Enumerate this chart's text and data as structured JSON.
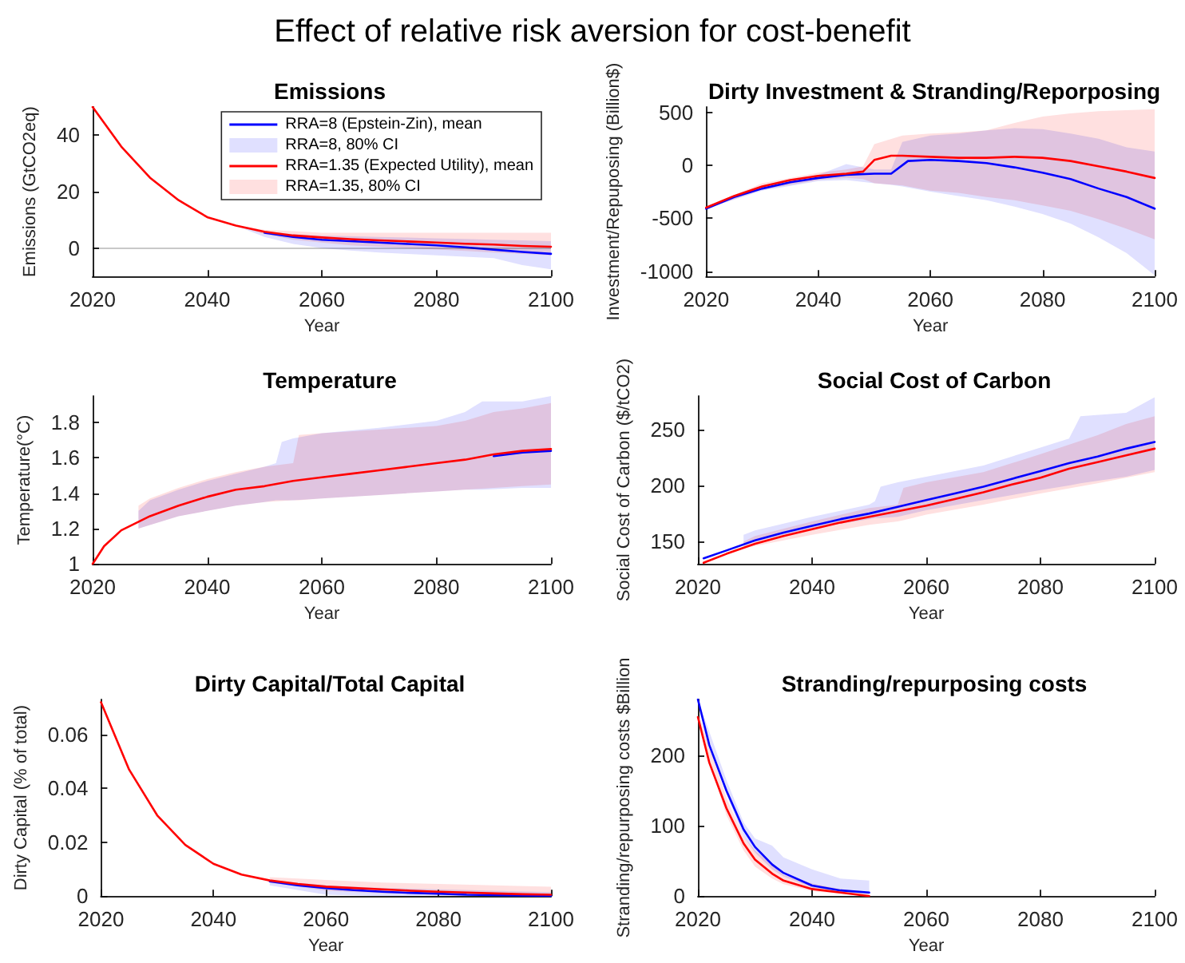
{
  "chart_data": [
    {
      "type": "other",
      "title": "Effect of relative risk aversion for cost-benefit"
    },
    {
      "type": "line",
      "title": "Emissions",
      "xlabel": "Year",
      "ylabel": "Emissions (GtCO2eq)",
      "xlim": [
        2020,
        2100
      ],
      "xticks": [
        2020,
        2040,
        2060,
        2080,
        2100
      ],
      "ylim": [
        -10,
        50
      ],
      "yticks": [
        0,
        20,
        40
      ],
      "legend": "top right",
      "ref_lines": [
        {
          "axis": "y",
          "value": 0,
          "color": "#c8c8c8"
        }
      ],
      "series": [
        {
          "type": "line",
          "name": "RRA=8 (Epstein-Zin), mean",
          "color": "#0000ff",
          "x": [
            2050,
            2055,
            2060,
            2065,
            2070,
            2075,
            2080,
            2085,
            2090,
            2095,
            2100
          ],
          "values": [
            5.5,
            4,
            3,
            2.5,
            2,
            1.5,
            1,
            0.3,
            -0.5,
            -1.3,
            -2
          ]
        },
        {
          "type": "area",
          "name": "RRA=8, 80% CI",
          "color": "#e0e0ff",
          "x": [
            2045,
            2050,
            2055,
            2060,
            2065,
            2070,
            2075,
            2080,
            2085,
            2090,
            2095,
            2100
          ],
          "values": [
            null,
            null,
            null,
            null,
            null,
            null,
            null,
            null,
            null,
            null,
            null,
            null
          ],
          "lower": [
            8,
            4,
            1.5,
            0,
            -0.8,
            -1.5,
            -2,
            -2.5,
            -3,
            -3.5,
            -6,
            -7.5
          ],
          "upper": [
            8,
            6,
            5,
            4.5,
            4.3,
            4,
            3.8,
            3.5,
            3.3,
            3,
            2.8,
            2.5
          ]
        },
        {
          "type": "line",
          "name": "RRA=1.35 (Expected Utility), mean",
          "color": "#ff0000",
          "x": [
            2020,
            2025,
            2030,
            2035,
            2040,
            2045,
            2050,
            2055,
            2060,
            2065,
            2070,
            2075,
            2080,
            2085,
            2090,
            2095,
            2100
          ],
          "values": [
            50,
            36,
            25,
            17,
            11,
            8,
            5.8,
            4.5,
            3.8,
            3.2,
            2.8,
            2.4,
            2,
            1.6,
            1.3,
            0.8,
            0.5
          ]
        },
        {
          "type": "area",
          "name": "RRA=1.35, 80% CI",
          "color": "#ffe0e0",
          "x": [
            2045,
            2050,
            2055,
            2060,
            2065,
            2070,
            2075,
            2080,
            2085,
            2090,
            2095,
            2100
          ],
          "values": [
            null,
            null,
            null,
            null,
            null,
            null,
            null,
            null,
            null,
            null,
            null,
            null
          ],
          "lower": [
            8,
            5,
            3,
            2,
            1,
            0.5,
            0,
            -0.5,
            -1,
            -1.5,
            -2,
            -2.5
          ],
          "upper": [
            8,
            6.5,
            6,
            5.5,
            5.5,
            5.5,
            5.5,
            5.5,
            5.5,
            5.5,
            5.5,
            5.5
          ]
        }
      ]
    },
    {
      "type": "line",
      "title": "Dirty Investment & Stranding/Reporposing",
      "xlabel": "Year",
      "ylabel": "Investment/Repuposing (Billion$)",
      "xlim": [
        2020,
        2100
      ],
      "xticks": [
        2020,
        2040,
        2060,
        2080,
        2100
      ],
      "ylim": [
        -1050,
        550
      ],
      "yticks": [
        -1000,
        -500,
        0,
        500
      ],
      "series": [
        {
          "type": "line",
          "color": "#0000ff",
          "x": [
            2020,
            2025,
            2030,
            2035,
            2040,
            2045,
            2050,
            2053,
            2056,
            2060,
            2065,
            2070,
            2075,
            2080,
            2085,
            2090,
            2095,
            2100
          ],
          "values": [
            -410,
            -300,
            -220,
            -160,
            -120,
            -90,
            -80,
            -80,
            40,
            50,
            40,
            20,
            -20,
            -70,
            -130,
            -220,
            -300,
            -410
          ]
        },
        {
          "type": "area",
          "color": "#e0e0ff",
          "x": [
            2020,
            2030,
            2040,
            2045,
            2050,
            2053,
            2055,
            2060,
            2065,
            2070,
            2075,
            2080,
            2085,
            2090,
            2095,
            2100
          ],
          "values": [
            null,
            null,
            null,
            null,
            null,
            null,
            null,
            null,
            null,
            null,
            null,
            null,
            null,
            null,
            null,
            null
          ],
          "lower": [
            -410,
            -240,
            -150,
            -140,
            -170,
            -185,
            -200,
            -250,
            -290,
            -330,
            -390,
            -460,
            -550,
            -680,
            -830,
            -1040
          ],
          "upper": [
            -400,
            -190,
            -90,
            10,
            -40,
            -40,
            220,
            280,
            300,
            330,
            350,
            340,
            300,
            250,
            170,
            130
          ]
        },
        {
          "type": "line",
          "color": "#ff0000",
          "x": [
            2020,
            2025,
            2030,
            2035,
            2040,
            2045,
            2048,
            2050,
            2053,
            2055,
            2060,
            2065,
            2070,
            2075,
            2080,
            2085,
            2090,
            2095,
            2100
          ],
          "values": [
            -400,
            -290,
            -200,
            -140,
            -100,
            -80,
            -60,
            50,
            90,
            90,
            80,
            70,
            70,
            80,
            70,
            40,
            -10,
            -60,
            -120
          ]
        },
        {
          "type": "area",
          "color": "#ffe0e0",
          "x": [
            2020,
            2030,
            2040,
            2045,
            2048,
            2050,
            2055,
            2060,
            2065,
            2070,
            2075,
            2080,
            2085,
            2090,
            2095,
            2100
          ],
          "values": [
            null,
            null,
            null,
            null,
            null,
            null,
            null,
            null,
            null,
            null,
            null,
            null,
            null,
            null,
            null,
            null
          ],
          "lower": [
            -410,
            -230,
            -140,
            -120,
            -130,
            -170,
            -190,
            -240,
            -260,
            -300,
            -330,
            -380,
            -430,
            -510,
            -600,
            -700
          ],
          "upper": [
            -390,
            -170,
            -70,
            -40,
            -10,
            200,
            280,
            300,
            310,
            330,
            400,
            460,
            490,
            510,
            520,
            530
          ]
        }
      ]
    },
    {
      "type": "line",
      "title": "Temperature",
      "xlabel": "Year",
      "ylabel": "Temperature(°C)",
      "xlim": [
        2020,
        2100
      ],
      "xticks": [
        2020,
        2040,
        2060,
        2080,
        2100
      ],
      "ylim": [
        1,
        1.95
      ],
      "yticks": [
        1,
        1.2,
        1.4,
        1.6,
        1.8
      ],
      "series": [
        {
          "type": "line",
          "color": "#0000ff",
          "x": [
            2090,
            2095,
            2100
          ],
          "values": [
            1.61,
            1.63,
            1.64
          ]
        },
        {
          "type": "area",
          "color": "#e0e0ff",
          "x": [
            2028,
            2030,
            2035,
            2040,
            2045,
            2050,
            2052,
            2053,
            2055,
            2060,
            2070,
            2080,
            2085,
            2088,
            2095,
            2100
          ],
          "values": [
            null,
            null,
            null,
            null,
            null,
            null,
            null,
            null,
            null,
            null,
            null,
            null,
            null,
            null,
            null,
            null
          ],
          "lower": [
            1.2,
            1.22,
            1.27,
            1.3,
            1.33,
            1.35,
            1.36,
            1.36,
            1.36,
            1.37,
            1.39,
            1.41,
            1.42,
            1.42,
            1.43,
            1.43
          ],
          "upper": [
            1.3,
            1.36,
            1.42,
            1.47,
            1.51,
            1.55,
            1.57,
            1.69,
            1.71,
            1.74,
            1.77,
            1.81,
            1.86,
            1.92,
            1.92,
            1.95
          ]
        },
        {
          "type": "line",
          "color": "#ff0000",
          "x": [
            2020,
            2022,
            2025,
            2030,
            2035,
            2040,
            2045,
            2050,
            2055,
            2060,
            2065,
            2070,
            2075,
            2080,
            2085,
            2090,
            2095,
            2100
          ],
          "values": [
            1,
            1.1,
            1.19,
            1.27,
            1.33,
            1.38,
            1.42,
            1.44,
            1.47,
            1.49,
            1.51,
            1.53,
            1.55,
            1.57,
            1.59,
            1.62,
            1.64,
            1.65
          ]
        },
        {
          "type": "area",
          "color": "#ffe0e0",
          "x": [
            2028,
            2030,
            2035,
            2040,
            2045,
            2050,
            2055,
            2056,
            2060,
            2070,
            2080,
            2085,
            2090,
            2095,
            2100
          ],
          "values": [
            null,
            null,
            null,
            null,
            null,
            null,
            null,
            null,
            null,
            null,
            null,
            null,
            null,
            null,
            null
          ],
          "lower": [
            1.2,
            1.22,
            1.27,
            1.3,
            1.33,
            1.35,
            1.36,
            1.36,
            1.37,
            1.39,
            1.41,
            1.42,
            1.43,
            1.44,
            1.45
          ],
          "upper": [
            1.33,
            1.37,
            1.43,
            1.48,
            1.52,
            1.55,
            1.57,
            1.73,
            1.74,
            1.76,
            1.78,
            1.81,
            1.86,
            1.88,
            1.91
          ]
        }
      ]
    },
    {
      "type": "line",
      "title": "Social Cost of Carbon",
      "xlabel": "Year",
      "ylabel": "Social Cost of Carbon ($/tCO2)",
      "xlim": [
        2020,
        2100
      ],
      "xticks": [
        2020,
        2040,
        2060,
        2080,
        2100
      ],
      "ylim": [
        130,
        280
      ],
      "yticks": [
        150,
        200,
        250
      ],
      "series": [
        {
          "type": "line",
          "color": "#0000ff",
          "x": [
            2021,
            2025,
            2030,
            2035,
            2040,
            2045,
            2050,
            2055,
            2060,
            2065,
            2070,
            2075,
            2080,
            2085,
            2090,
            2095,
            2100
          ],
          "values": [
            135,
            142,
            151,
            158,
            164,
            170,
            175,
            181,
            187,
            193,
            199,
            206,
            213,
            220,
            226,
            233,
            239
          ]
        },
        {
          "type": "area",
          "color": "#e0e0ff",
          "x": [
            2028,
            2030,
            2040,
            2050,
            2051,
            2052,
            2055,
            2060,
            2070,
            2080,
            2085,
            2087,
            2095,
            2100
          ],
          "values": [
            null,
            null,
            null,
            null,
            null,
            null,
            null,
            null,
            null,
            null,
            null,
            null,
            null,
            null
          ],
          "lower": [
            148,
            150,
            162,
            170,
            171,
            171,
            172,
            178,
            187,
            196,
            200,
            202,
            208,
            214
          ],
          "upper": [
            156,
            160,
            172,
            183,
            186,
            199,
            203,
            208,
            218,
            234,
            242,
            262,
            265,
            279
          ]
        },
        {
          "type": "line",
          "color": "#ff0000",
          "x": [
            2021,
            2025,
            2030,
            2035,
            2040,
            2045,
            2050,
            2055,
            2060,
            2065,
            2070,
            2075,
            2080,
            2085,
            2090,
            2095,
            2100
          ],
          "values": [
            131,
            139,
            148,
            155,
            161,
            167,
            172,
            177,
            182,
            188,
            194,
            201,
            207,
            215,
            221,
            227,
            233
          ]
        },
        {
          "type": "area",
          "color": "#ffe0e0",
          "x": [
            2028,
            2030,
            2040,
            2050,
            2055,
            2056,
            2060,
            2070,
            2080,
            2090,
            2095,
            2100
          ],
          "values": [
            null,
            null,
            null,
            null,
            null,
            null,
            null,
            null,
            null,
            null,
            null,
            null
          ],
          "lower": [
            144,
            146,
            156,
            165,
            168,
            169,
            174,
            183,
            193,
            202,
            207,
            212
          ],
          "upper": [
            150,
            155,
            168,
            180,
            183,
            198,
            203,
            212,
            228,
            245,
            255,
            262
          ]
        }
      ]
    },
    {
      "type": "line",
      "title": "Dirty Capital/Total Capital",
      "xlabel": "Year",
      "ylabel": "Dirty Capital (% of total)",
      "xlim": [
        2020,
        2100
      ],
      "xticks": [
        2020,
        2040,
        2060,
        2080,
        2100
      ],
      "ylim": [
        0,
        0.073
      ],
      "yticks": [
        0,
        0.02,
        0.04,
        0.06
      ],
      "series": [
        {
          "type": "line",
          "color": "#0000ff",
          "x": [
            2050,
            2055,
            2060,
            2065,
            2070,
            2075,
            2080,
            2085,
            2090,
            2095,
            2100
          ],
          "values": [
            0.0055,
            0.004,
            0.003,
            0.0022,
            0.0016,
            0.0012,
            0.0009,
            0.0005,
            0.0004,
            0.0002,
            0.0001
          ]
        },
        {
          "type": "area",
          "color": "#e0e0ff",
          "x": [
            2050,
            2060,
            2070,
            2080,
            2090,
            2100
          ],
          "values": [
            null,
            null,
            null,
            null,
            null,
            null
          ],
          "lower": [
            0.004,
            0.0005,
            0,
            0,
            0,
            0
          ],
          "upper": [
            0.006,
            0.004,
            0.003,
            0.0025,
            0.002,
            0.0015
          ]
        },
        {
          "type": "line",
          "color": "#ff0000",
          "x": [
            2020,
            2025,
            2030,
            2035,
            2040,
            2045,
            2050,
            2055,
            2060,
            2065,
            2070,
            2075,
            2080,
            2085,
            2090,
            2095,
            2100
          ],
          "values": [
            0.072,
            0.047,
            0.03,
            0.019,
            0.012,
            0.008,
            0.0058,
            0.0045,
            0.0035,
            0.003,
            0.0025,
            0.002,
            0.0016,
            0.0013,
            0.001,
            0.0007,
            0.0005
          ]
        },
        {
          "type": "area",
          "color": "#ffe0e0",
          "x": [
            2050,
            2060,
            2070,
            2080,
            2090,
            2100
          ],
          "values": [
            null,
            null,
            null,
            null,
            null,
            null
          ],
          "lower": [
            0.005,
            0.002,
            0.001,
            0.0005,
            0.0003,
            0.0001
          ],
          "upper": [
            0.007,
            0.006,
            0.005,
            0.0045,
            0.004,
            0.0035
          ]
        }
      ]
    },
    {
      "type": "line",
      "title": "Stranding/repurposing costs",
      "xlabel": "Year",
      "ylabel": "Stranding/repurposing costs $Billion",
      "xlim": [
        2020,
        2100
      ],
      "xticks": [
        2020,
        2040,
        2060,
        2080,
        2100
      ],
      "ylim": [
        0,
        280
      ],
      "yticks": [
        0,
        100,
        200
      ],
      "series": [
        {
          "type": "line",
          "color": "#0000ff",
          "x": [
            2020,
            2022,
            2025,
            2028,
            2030,
            2033,
            2035,
            2040,
            2045,
            2050
          ],
          "values": [
            280,
            215,
            150,
            95,
            70,
            45,
            33,
            15,
            8,
            5
          ]
        },
        {
          "type": "area",
          "color": "#e0e0ff",
          "x": [
            2020,
            2025,
            2028,
            2030,
            2033,
            2035,
            2040,
            2045,
            2050
          ],
          "values": [
            null,
            null,
            null,
            null,
            null,
            null,
            null,
            null,
            null
          ],
          "lower": [
            272,
            145,
            85,
            62,
            38,
            28,
            12,
            6,
            3
          ],
          "upper": [
            280,
            165,
            105,
            82,
            72,
            55,
            38,
            25,
            22
          ]
        },
        {
          "type": "line",
          "color": "#ff0000",
          "x": [
            2020,
            2022,
            2025,
            2028,
            2030,
            2033,
            2035,
            2040,
            2045,
            2050
          ],
          "values": [
            255,
            190,
            125,
            75,
            52,
            32,
            22,
            10,
            5,
            0
          ]
        },
        {
          "type": "area",
          "color": "#ffe0e0",
          "x": [
            2020,
            2025,
            2028,
            2030,
            2033,
            2035,
            2040,
            2045,
            2050
          ],
          "values": [
            null,
            null,
            null,
            null,
            null,
            null,
            null,
            null,
            null
          ],
          "lower": [
            245,
            115,
            65,
            42,
            25,
            17,
            7,
            3,
            0
          ],
          "upper": [
            262,
            140,
            85,
            65,
            45,
            30,
            18,
            10,
            6
          ]
        }
      ]
    }
  ]
}
